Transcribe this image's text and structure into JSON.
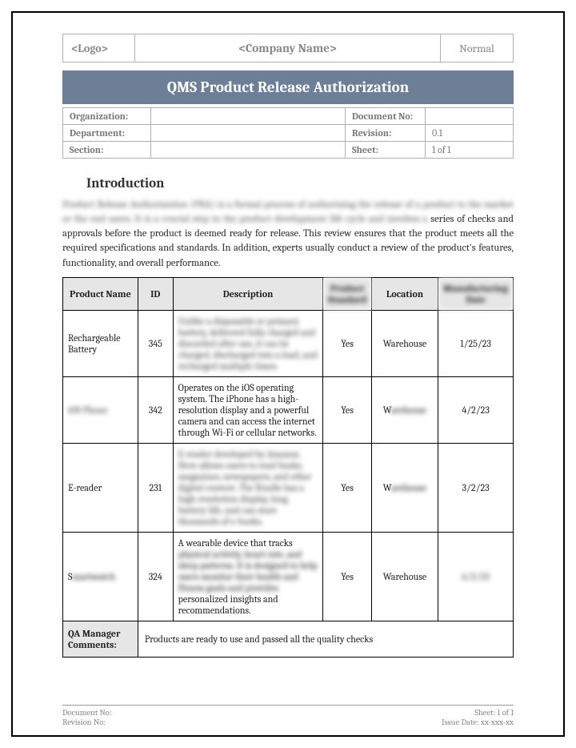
{
  "header": {
    "logo": "<Logo>",
    "company": "<Company Name>",
    "normal": "Normal"
  },
  "title": "QMS Product Release Authorization",
  "meta": {
    "organization_label": "Organization:",
    "organization_value": "",
    "document_no_label": "Document No:",
    "document_no_value": "",
    "department_label": "Department:",
    "department_value": "",
    "revision_label": "Revision:",
    "revision_value": "0.1",
    "section_label": "Section:",
    "section_value": "",
    "sheet_label": "Sheet:",
    "sheet_value": "1 of 1"
  },
  "introduction": {
    "heading": "Introduction",
    "blurred_lead": "Product Release Authorization (PRA) is a formal process of authorizing the release of a product to the market or the end users. It is a crucial step in the product development life cycle and involves a",
    "line2": "series of checks and approvals before the product is deemed ready for release. This review ensures",
    "line3": "that the product meets all the required specifications and standards. In addition, experts usually conduct a review of the product's features, functionality, and overall performance."
  },
  "table": {
    "headers": {
      "name": "Product Name",
      "id": "ID",
      "description": "Description",
      "col4": "Product Standard",
      "location": "Location",
      "col6": "Manufacturing Date"
    },
    "rows": [
      {
        "name": "Rechargeable Battery",
        "id": "345",
        "desc_blurred": "Unlike a disposable or primary battery, delivered fully charged and discarded after use, it can be charged, discharged into a load, and recharged multiple times.",
        "x": "Yes",
        "location": "Warehouse",
        "date": "1/25/23"
      },
      {
        "name_blurred": "iOS Phone",
        "id": "342",
        "desc": "Operates on the iOS operating system. The iPhone has a high-resolution display and a powerful camera and can access the internet through Wi-Fi or cellular networks.",
        "x": "Yes",
        "location_prefix": "W",
        "location_blurred": "arehouse",
        "date": "4/2/23"
      },
      {
        "name": "E-reader",
        "id": "231",
        "desc_blurred": "E-reader developed by Amazon. Here allows users to read books, magazines, newspapers, and other digital content. The Kindle has a high resolution display, long battery life, and can store thousands of e-books.",
        "x": "Yes",
        "location_prefix": "W",
        "location_blurred": "arehouse",
        "date": "3/2/23"
      },
      {
        "name_prefix": "S",
        "name_blurred": "martwatch",
        "id": "324",
        "desc_pre": "A wearable device that tracks",
        "desc_blurred": "physical activity, heart rate, and sleep patterns. It is designed to help users monitor their health and fitness goals and provides",
        "desc_post": "personalized insights and recommendations.",
        "x": "Yes",
        "location": "Warehouse",
        "date_blurred": "6/2/23"
      }
    ],
    "comments_label": "QA Manager Comments:",
    "comments_value": "Products are ready to use and passed all the quality checks"
  },
  "footer": {
    "doc_no": "Document No:",
    "rev_no": "Revision No:",
    "sheet": "Sheet: 1 of 1",
    "issue": "Issue Date: xx-xxx-xx"
  }
}
